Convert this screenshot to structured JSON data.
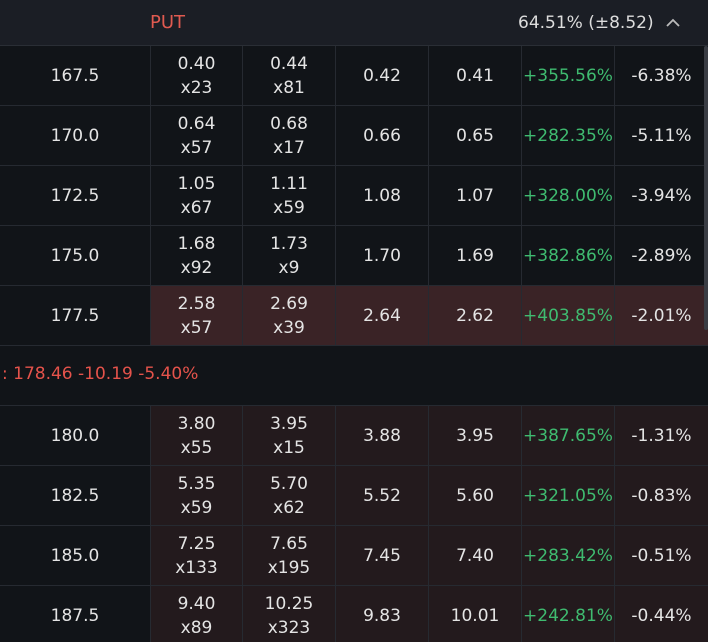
{
  "header": {
    "side": "PUT",
    "iv": "64.51% (±8.52)"
  },
  "columns_count_note_free": null,
  "rows_above": [
    {
      "strike": "167.5",
      "bid": "0.40",
      "bid_size": "x23",
      "ask": "0.44",
      "ask_size": "x81",
      "mid": "0.42",
      "last": "0.41",
      "change_pct": "+355.56%",
      "pct": "-6.38%"
    },
    {
      "strike": "170.0",
      "bid": "0.64",
      "bid_size": "x57",
      "ask": "0.68",
      "ask_size": "x17",
      "mid": "0.66",
      "last": "0.65",
      "change_pct": "+282.35%",
      "pct": "-5.11%"
    },
    {
      "strike": "172.5",
      "bid": "1.05",
      "bid_size": "x67",
      "ask": "1.11",
      "ask_size": "x59",
      "mid": "1.08",
      "last": "1.07",
      "change_pct": "+328.00%",
      "pct": "-3.94%"
    },
    {
      "strike": "175.0",
      "bid": "1.68",
      "bid_size": "x92",
      "ask": "1.73",
      "ask_size": "x9",
      "mid": "1.70",
      "last": "1.69",
      "change_pct": "+382.86%",
      "pct": "-2.89%"
    },
    {
      "strike": "177.5",
      "bid": "2.58",
      "bid_size": "x57",
      "ask": "2.69",
      "ask_size": "x39",
      "mid": "2.64",
      "last": "2.62",
      "change_pct": "+403.85%",
      "pct": "-2.01%"
    }
  ],
  "underlying": ": 178.46 -10.19 -5.40%",
  "rows_below": [
    {
      "strike": "180.0",
      "bid": "3.80",
      "bid_size": "x55",
      "ask": "3.95",
      "ask_size": "x15",
      "mid": "3.88",
      "last": "3.95",
      "change_pct": "+387.65%",
      "pct": "-1.31%"
    },
    {
      "strike": "182.5",
      "bid": "5.35",
      "bid_size": "x59",
      "ask": "5.70",
      "ask_size": "x62",
      "mid": "5.52",
      "last": "5.60",
      "change_pct": "+321.05%",
      "pct": "-0.83%"
    },
    {
      "strike": "185.0",
      "bid": "7.25",
      "bid_size": "x133",
      "ask": "7.65",
      "ask_size": "x195",
      "mid": "7.45",
      "last": "7.40",
      "change_pct": "+283.42%",
      "pct": "-0.51%"
    },
    {
      "strike": "187.5",
      "bid": "9.40",
      "bid_size": "x89",
      "ask": "10.25",
      "ask_size": "x323",
      "mid": "9.83",
      "last": "10.01",
      "change_pct": "+242.81%",
      "pct": "-0.44%"
    }
  ]
}
